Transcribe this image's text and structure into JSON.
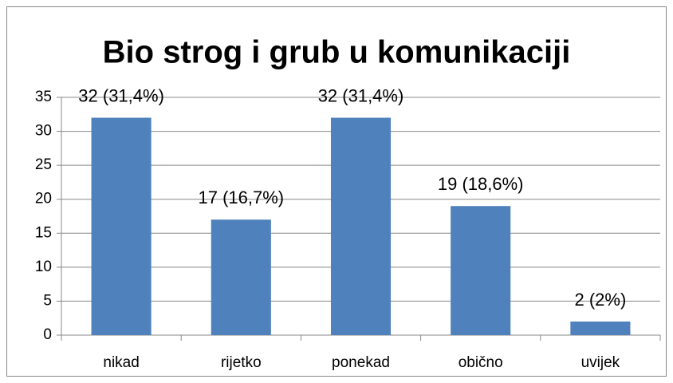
{
  "chart_data": {
    "type": "bar",
    "title": "Bio strog i grub u komunikaciji",
    "categories": [
      "nikad",
      "rijetko",
      "ponekad",
      "obično",
      "uvijek"
    ],
    "values": [
      32,
      17,
      32,
      19,
      2
    ],
    "value_labels": [
      "32 (31,4%)",
      "17 (16,7%)",
      "32 (31,4%)",
      "19 (18,6%)",
      "2 (2%)"
    ],
    "color": "#4f81bd",
    "ylim": [
      0,
      35
    ],
    "yticks": [
      0,
      5,
      10,
      15,
      20,
      25,
      30,
      35
    ],
    "grid": true
  }
}
